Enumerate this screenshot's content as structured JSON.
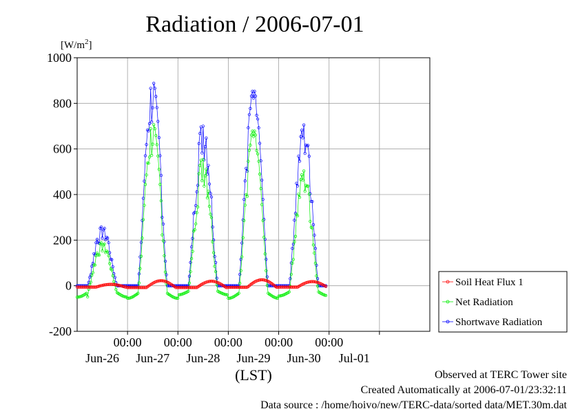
{
  "chart_data": {
    "type": "line",
    "title": "Radiation / 2006-07-01",
    "ylabel_unit": "[W/m",
    "ylabel_unit_sup": "2",
    "ylabel_unit_close": "]",
    "xlabel": "(LST)",
    "ylim": [
      -200,
      1000
    ],
    "yticks": [
      -200,
      0,
      200,
      400,
      600,
      800,
      1000
    ],
    "xlim": [
      0,
      7
    ],
    "time_ticks": [
      "00:00",
      "00:00",
      "00:00",
      "00:00",
      "00:00"
    ],
    "date_ticks": [
      "Jun-26",
      "Jun-27",
      "Jun-28",
      "Jun-29",
      "Jun-30",
      "Jul-01"
    ],
    "grid": true,
    "legend_position": "right",
    "series": [
      {
        "name": "Soil Heat Flux 1",
        "color": "#ff0000",
        "marker": "circle",
        "days": [
          {
            "amp": 6,
            "min": -6
          },
          {
            "amp": 22,
            "min": -8
          },
          {
            "amp": 20,
            "min": -8
          },
          {
            "amp": 26,
            "min": -7
          },
          {
            "amp": 18,
            "min": -6
          }
        ]
      },
      {
        "name": "Net Radiation",
        "color": "#00ee00",
        "marker": "circle",
        "days": [
          {
            "peak": 200,
            "night": -50
          },
          {
            "peak": 750,
            "night": -55
          },
          {
            "peak": 600,
            "night": -40
          },
          {
            "peak": 720,
            "night": -55
          },
          {
            "peak": 530,
            "night": -45
          }
        ]
      },
      {
        "name": "Shortwave Radiation",
        "color": "#0000ff",
        "marker": "circle",
        "days": [
          {
            "peak": 260
          },
          {
            "peak": 895
          },
          {
            "peak": 720
          },
          {
            "peak": 860
          },
          {
            "peak": 705
          }
        ]
      }
    ]
  },
  "footer": {
    "line1": "Observed at TERC Tower site",
    "line2": "Created Automatically at 2006-07-01/23:32:11",
    "line3": "Data source : /home/hoivo/new/TERC-data/sorted data/MET.30m.dat"
  }
}
